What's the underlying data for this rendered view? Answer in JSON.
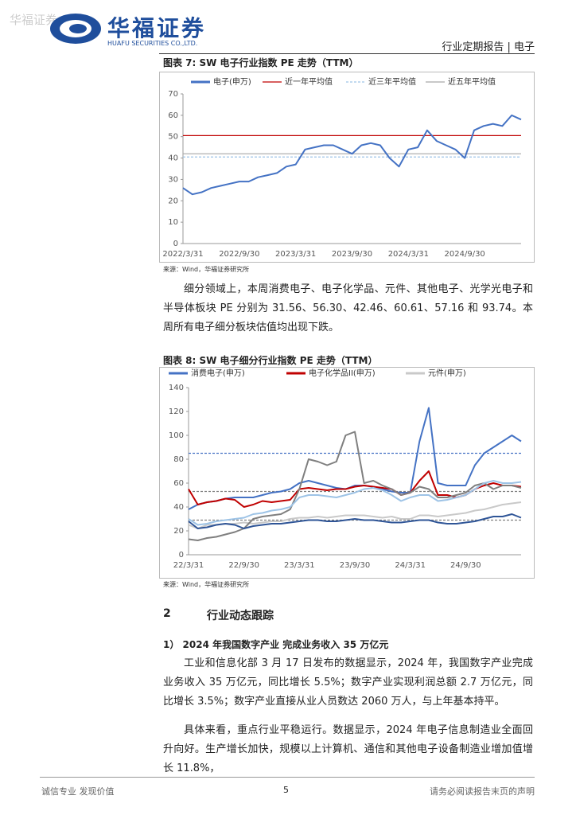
{
  "header": {
    "watermark": "华福证券",
    "logo_cn": "华福证券",
    "logo_en": "HUAFU SECURITIES CO.,LTD.",
    "report_type": "行业定期报告 | 电子"
  },
  "figure7": {
    "title": "图表 7:  SW 电子行业指数 PE 走势（TTM）",
    "source": "来源：Wind，华福证券研究所",
    "chart": {
      "type": "line",
      "categories": [
        "2022/3/31",
        null,
        null,
        null,
        null,
        null,
        "2022/9/30",
        null,
        null,
        null,
        null,
        null,
        "2023/3/31",
        null,
        null,
        null,
        null,
        null,
        "2023/9/30",
        null,
        null,
        null,
        null,
        null,
        "2024/3/31",
        null,
        null,
        null,
        null,
        null,
        "2024/9/30",
        null,
        null,
        null,
        null,
        null,
        null
      ],
      "series": [
        {
          "name": "电子(申万)",
          "color": "#4472c4",
          "values": [
            26,
            23,
            24,
            26,
            27,
            28,
            29,
            29,
            31,
            32,
            33,
            36,
            37,
            44,
            45,
            46,
            46,
            44,
            42,
            46,
            47,
            46,
            40,
            36,
            44,
            45,
            53,
            48,
            46,
            44,
            40,
            53,
            55,
            56,
            55,
            60,
            58
          ]
        }
      ],
      "reference_lines": [
        {
          "name": "近一年平均值",
          "color": "#c00000",
          "value": 50.5,
          "dashed": false
        },
        {
          "name": "近三年平均值",
          "color": "#9dc3e6",
          "value": 40.5,
          "dashed": true
        },
        {
          "name": "近五年平均值",
          "color": "#a6a6a6",
          "value": 42,
          "dashed": false
        }
      ],
      "ylim": [
        0,
        70
      ],
      "yticks": [
        0,
        10,
        20,
        30,
        40,
        50,
        60,
        70
      ]
    }
  },
  "paragraph1": "细分领域上，本周消费电子、电子化学品、元件、其他电子、光学光电子和半导体板块 PE 分别为 31.56、56.30、42.46、60.61、57.16 和 93.74。本周所有电子细分板块估值均出现下跌。",
  "figure8": {
    "title": "图表 8:  SW 电子细分行业指数 PE 走势（TTM）",
    "source": "来源：Wind，华福证券研究所",
    "chart": {
      "type": "line",
      "categories": [
        "22/3/31",
        null,
        null,
        null,
        null,
        null,
        "22/9/30",
        null,
        null,
        null,
        null,
        null,
        "23/3/31",
        null,
        null,
        null,
        null,
        null,
        "23/9/30",
        null,
        null,
        null,
        null,
        null,
        "24/3/31",
        null,
        null,
        null,
        null,
        null,
        "24/9/30",
        null,
        null,
        null,
        null,
        null,
        null
      ],
      "series": [
        {
          "name": "消费电子(申万)",
          "color": "#4472c4",
          "values": [
            38,
            42,
            44,
            45,
            47,
            48,
            48,
            48,
            50,
            52,
            53,
            55,
            60,
            62,
            60,
            58,
            56,
            55,
            58,
            58,
            57,
            55,
            53,
            52,
            52,
            95,
            123,
            60,
            58,
            58,
            58,
            75,
            85,
            90,
            95,
            100,
            95
          ]
        },
        {
          "name": "电子化学品II(申万)",
          "color": "#c00000",
          "values": [
            55,
            42,
            44,
            45,
            47,
            46,
            40,
            42,
            45,
            44,
            45,
            46,
            55,
            56,
            55,
            54,
            55,
            55,
            57,
            58,
            57,
            56,
            55,
            50,
            52,
            62,
            70,
            50,
            50,
            48,
            50,
            55,
            58,
            60,
            58,
            58,
            57
          ]
        },
        {
          "name": "元件(申万)",
          "color": "#c9c9c9",
          "values": [
            25,
            22,
            25,
            25,
            26,
            26,
            27,
            26,
            27,
            28,
            28,
            30,
            31,
            31,
            32,
            31,
            32,
            33,
            33,
            33,
            32,
            31,
            32,
            30,
            30,
            33,
            33,
            32,
            33,
            34,
            35,
            37,
            38,
            40,
            42,
            43,
            44
          ]
        },
        {
          "color": "#7f7f7f",
          "values": [
            13,
            12,
            14,
            15,
            17,
            19,
            22,
            30,
            32,
            33,
            34,
            38,
            55,
            80,
            78,
            75,
            78,
            100,
            103,
            60,
            62,
            58,
            55,
            50,
            52,
            57,
            55,
            48,
            48,
            50,
            52,
            58,
            60,
            55,
            58,
            58,
            56
          ]
        },
        {
          "color": "#9dc3e6",
          "values": [
            30,
            25,
            26,
            28,
            29,
            30,
            31,
            34,
            35,
            37,
            38,
            40,
            48,
            50,
            50,
            49,
            48,
            50,
            52,
            55,
            56,
            54,
            50,
            45,
            48,
            50,
            50,
            45,
            46,
            48,
            50,
            55,
            60,
            62,
            60,
            60,
            61
          ]
        },
        {
          "color": "#2f5597",
          "values": [
            28,
            22,
            23,
            25,
            26,
            25,
            22,
            24,
            25,
            26,
            26,
            27,
            28,
            29,
            29,
            28,
            28,
            29,
            30,
            29,
            29,
            28,
            27,
            27,
            28,
            29,
            29,
            27,
            26,
            26,
            27,
            28,
            30,
            32,
            32,
            34,
            31
          ]
        }
      ],
      "reference_lines": [
        {
          "color": "#4472c4",
          "value": 85,
          "dashed": true
        },
        {
          "color": "#7f7f7f",
          "value": 53,
          "dashed": true
        },
        {
          "color": "#7f7f7f",
          "value": 29,
          "dashed": true
        }
      ],
      "ylim": [
        0,
        140
      ],
      "yticks": [
        0,
        20,
        40,
        60,
        80,
        100,
        120,
        140
      ]
    }
  },
  "section": {
    "number": "2",
    "title": "行业动态跟踪"
  },
  "subsection": "1）  2024 年我国数字产业 完成业务收入 35 万亿元",
  "paragraph2": "工业和信息化部 3 月 17 日发布的数据显示，2024 年，我国数字产业完成业务收入 35 万亿元，同比增长 5.5%；数字产业实现利润总额 2.7 万亿元，同比增长 3.5%；数字产业直接从业人员数达 2060 万人，与上年基本持平。",
  "paragraph3": "具体来看，重点行业平稳运行。数据显示，2024 年电子信息制造业全面回升向好。生产增长加快，规模以上计算机、通信和其他电子设备制造业增加值增长 11.8%，",
  "footer": {
    "left": "诚信专业  发现价值",
    "page": "5",
    "right": "请务必阅读报告末页的声明"
  }
}
